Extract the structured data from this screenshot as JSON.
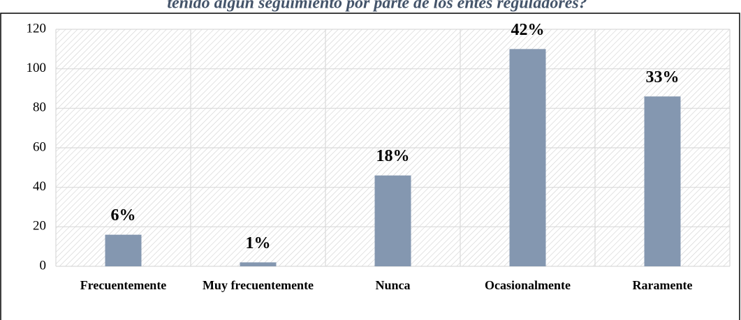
{
  "chart_data": {
    "type": "bar",
    "title": "tenido algún seguimiento por parte de los entes reguladores?",
    "categories": [
      "Frecuentemente",
      "Muy frecuentemente",
      "Nunca",
      "Ocasionalmente",
      "Raramente"
    ],
    "values": [
      16,
      2,
      46,
      110,
      86
    ],
    "value_labels": [
      "6%",
      "1%",
      "18%",
      "42%",
      "33%"
    ],
    "color": "#8497b0",
    "ylim": [
      0,
      120
    ],
    "yticks": [
      0,
      20,
      40,
      60,
      80,
      100,
      120
    ],
    "grid": true
  }
}
